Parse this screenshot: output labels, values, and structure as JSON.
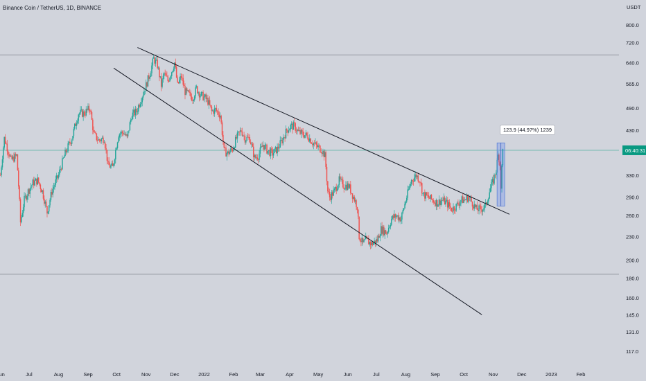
{
  "title": "Binance Coin / TetherUS, 1D, BINANCE",
  "chart_data": {
    "type": "candlestick",
    "currency": "USDT",
    "y_ticks": [
      800.0,
      720.0,
      640.0,
      565.0,
      490.0,
      430.0,
      330.0,
      290.0,
      260.0,
      230.0,
      200.0,
      180.0,
      160.0,
      145.0,
      131.0,
      117.0
    ],
    "x_ticks": [
      "Jun",
      "Jul",
      "Aug",
      "Sep",
      "Oct",
      "Nov",
      "Dec",
      "2022",
      "Feb",
      "Mar",
      "Apr",
      "May",
      "Jun",
      "Jul",
      "Aug",
      "Sep",
      "Oct",
      "Nov",
      "Dec",
      "2023",
      "Feb"
    ],
    "current_price_label": "06:40:31",
    "current_price": 382,
    "horizontal_levels": [
      670,
      184
    ],
    "trendlines": [
      {
        "from": [
          "2021-10-23",
          700
        ],
        "to": [
          "2022-11-18",
          262
        ]
      },
      {
        "from": [
          "2021-09-28",
          620
        ],
        "to": [
          "2022-10-20",
          145
        ]
      }
    ],
    "measurement": {
      "label": "123.9 (44.97%) 1239",
      "from": [
        "2022-11-05",
        275
      ],
      "to": [
        "2022-11-13",
        399
      ]
    },
    "price_path": [
      [
        "2021-06-01",
        330
      ],
      [
        "2021-06-05",
        410
      ],
      [
        "2021-06-12",
        360
      ],
      [
        "2021-06-18",
        370
      ],
      [
        "2021-06-22",
        250
      ],
      [
        "2021-06-26",
        285
      ],
      [
        "2021-06-30",
        300
      ],
      [
        "2021-07-05",
        315
      ],
      [
        "2021-07-10",
        320
      ],
      [
        "2021-07-15",
        300
      ],
      [
        "2021-07-20",
        265
      ],
      [
        "2021-07-25",
        300
      ],
      [
        "2021-08-01",
        330
      ],
      [
        "2021-08-08",
        375
      ],
      [
        "2021-08-15",
        410
      ],
      [
        "2021-08-22",
        475
      ],
      [
        "2021-08-28",
        475
      ],
      [
        "2021-09-03",
        490
      ],
      [
        "2021-09-07",
        420
      ],
      [
        "2021-09-12",
        405
      ],
      [
        "2021-09-18",
        410
      ],
      [
        "2021-09-22",
        350
      ],
      [
        "2021-09-27",
        345
      ],
      [
        "2021-10-03",
        420
      ],
      [
        "2021-10-08",
        425
      ],
      [
        "2021-10-12",
        410
      ],
      [
        "2021-10-17",
        470
      ],
      [
        "2021-10-22",
        480
      ],
      [
        "2021-10-27",
        520
      ],
      [
        "2021-11-01",
        560
      ],
      [
        "2021-11-05",
        600
      ],
      [
        "2021-11-09",
        655
      ],
      [
        "2021-11-13",
        630
      ],
      [
        "2021-11-17",
        560
      ],
      [
        "2021-11-20",
        600
      ],
      [
        "2021-11-24",
        575
      ],
      [
        "2021-11-28",
        610
      ],
      [
        "2021-12-01",
        640
      ],
      [
        "2021-12-04",
        560
      ],
      [
        "2021-12-08",
        590
      ],
      [
        "2021-12-12",
        540
      ],
      [
        "2021-12-16",
        530
      ],
      [
        "2021-12-20",
        520
      ],
      [
        "2021-12-24",
        550
      ],
      [
        "2021-12-28",
        530
      ],
      [
        "2022-01-02",
        520
      ],
      [
        "2022-01-05",
        510
      ],
      [
        "2022-01-09",
        480
      ],
      [
        "2022-01-13",
        485
      ],
      [
        "2022-01-18",
        470
      ],
      [
        "2022-01-22",
        380
      ],
      [
        "2022-01-26",
        375
      ],
      [
        "2022-01-31",
        385
      ],
      [
        "2022-02-04",
        410
      ],
      [
        "2022-02-09",
        430
      ],
      [
        "2022-02-13",
        410
      ],
      [
        "2022-02-18",
        410
      ],
      [
        "2022-02-23",
        365
      ],
      [
        "2022-02-27",
        370
      ],
      [
        "2022-03-04",
        395
      ],
      [
        "2022-03-09",
        380
      ],
      [
        "2022-03-14",
        375
      ],
      [
        "2022-03-19",
        385
      ],
      [
        "2022-03-24",
        405
      ],
      [
        "2022-03-29",
        430
      ],
      [
        "2022-04-02",
        440
      ],
      [
        "2022-04-06",
        440
      ],
      [
        "2022-04-10",
        425
      ],
      [
        "2022-04-15",
        420
      ],
      [
        "2022-04-20",
        415
      ],
      [
        "2022-04-25",
        400
      ],
      [
        "2022-04-30",
        390
      ],
      [
        "2022-05-04",
        385
      ],
      [
        "2022-05-08",
        370
      ],
      [
        "2022-05-11",
        300
      ],
      [
        "2022-05-13",
        290
      ],
      [
        "2022-05-18",
        300
      ],
      [
        "2022-05-23",
        320
      ],
      [
        "2022-05-28",
        310
      ],
      [
        "2022-06-02",
        310
      ],
      [
        "2022-06-07",
        290
      ],
      [
        "2022-06-11",
        275
      ],
      [
        "2022-06-13",
        230
      ],
      [
        "2022-06-17",
        220
      ],
      [
        "2022-06-20",
        225
      ],
      [
        "2022-06-26",
        220
      ],
      [
        "2022-07-02",
        225
      ],
      [
        "2022-07-06",
        240
      ],
      [
        "2022-07-12",
        235
      ],
      [
        "2022-07-17",
        255
      ],
      [
        "2022-07-22",
        260
      ],
      [
        "2022-07-27",
        255
      ],
      [
        "2022-08-02",
        290
      ],
      [
        "2022-08-07",
        320
      ],
      [
        "2022-08-12",
        330
      ],
      [
        "2022-08-16",
        320
      ],
      [
        "2022-08-19",
        295
      ],
      [
        "2022-08-24",
        290
      ],
      [
        "2022-08-29",
        285
      ],
      [
        "2022-09-03",
        280
      ],
      [
        "2022-09-08",
        285
      ],
      [
        "2022-09-13",
        280
      ],
      [
        "2022-09-18",
        270
      ],
      [
        "2022-09-23",
        275
      ],
      [
        "2022-09-28",
        285
      ],
      [
        "2022-10-02",
        285
      ],
      [
        "2022-10-06",
        290
      ],
      [
        "2022-10-10",
        280
      ],
      [
        "2022-10-14",
        270
      ],
      [
        "2022-10-19",
        270
      ],
      [
        "2022-10-24",
        275
      ],
      [
        "2022-10-28",
        300
      ],
      [
        "2022-11-01",
        320
      ],
      [
        "2022-11-04",
        340
      ],
      [
        "2022-11-06",
        370
      ],
      [
        "2022-11-07",
        365
      ],
      [
        "2022-11-08",
        350
      ],
      [
        "2022-11-09",
        310
      ],
      [
        "2022-11-10",
        345
      ],
      [
        "2022-11-11",
        382
      ]
    ]
  }
}
